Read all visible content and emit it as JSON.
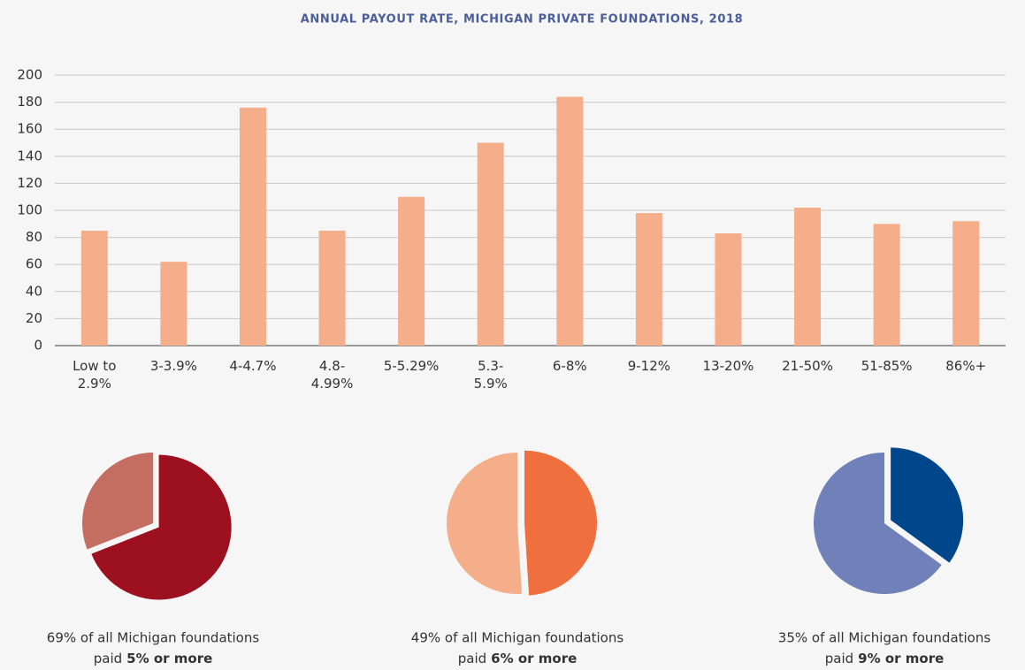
{
  "chart_data": [
    {
      "type": "bar",
      "title": "ANNUAL PAYOUT RATE, MICHIGAN PRIVATE FOUNDATIONS, 2018",
      "categories": [
        "Low to\n2.9%",
        "3-3.9%",
        "4-4.7%",
        "4.8-\n4.99%",
        "5-5.29%",
        "5.3-\n5.9%",
        "6-8%",
        "9-12%",
        "13-20%",
        "21-50%",
        "51-85%",
        "86%+"
      ],
      "values": [
        85,
        62,
        176,
        85,
        110,
        150,
        184,
        98,
        83,
        102,
        90,
        92
      ],
      "color": "#f5ae8a",
      "ylim": [
        0,
        200
      ],
      "yticks": [
        0,
        20,
        40,
        60,
        80,
        100,
        120,
        140,
        160,
        180,
        200
      ],
      "grid": true
    },
    {
      "type": "pie",
      "values": [
        69,
        31
      ],
      "colors": [
        "#9c1020",
        "#c46e62"
      ],
      "exploded": [
        true,
        false
      ],
      "caption": "69% of all Michigan foundations",
      "caption_lead": "paid",
      "caption_emphasis": "5% or more"
    },
    {
      "type": "pie",
      "values": [
        49,
        51
      ],
      "colors": [
        "#ef6f3e",
        "#f5ae8a"
      ],
      "exploded": [
        true,
        false
      ],
      "caption": "49% of all Michigan foundations",
      "caption_lead": "paid",
      "caption_emphasis": "6% or more"
    },
    {
      "type": "pie",
      "values": [
        35,
        65
      ],
      "colors": [
        "#00468b",
        "#7080b8"
      ],
      "exploded": [
        true,
        false
      ],
      "caption": "35% of all Michigan foundations",
      "caption_lead": "paid",
      "caption_emphasis": "9% or more"
    }
  ]
}
